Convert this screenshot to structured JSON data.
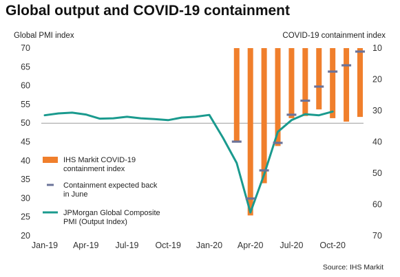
{
  "title": "Global output and COVID-19 containment",
  "source": "Source: IHS Markit",
  "colors": {
    "bars": "#f07f2c",
    "line": "#1a9a8e",
    "dash": "#6b7399",
    "baseline": "#9a9a9a"
  },
  "chart_data": {
    "type": "bar+line",
    "left_axis": {
      "label": "Global PMI index",
      "range": [
        20,
        70
      ],
      "ticks": [
        20,
        25,
        30,
        35,
        40,
        45,
        50,
        55,
        60,
        65,
        70
      ]
    },
    "right_axis": {
      "label": "COVID-19 containment index",
      "range": [
        70,
        10
      ],
      "inverted": true,
      "ticks": [
        10,
        20,
        30,
        40,
        50,
        60,
        70
      ]
    },
    "x_tick_labels": [
      "Jan-19",
      "Apr-19",
      "Jul-19",
      "Oct-19",
      "Jan-20",
      "Apr-20",
      "Jul-20",
      "Oct-20"
    ],
    "months": [
      "Jan-19",
      "Feb-19",
      "Mar-19",
      "Apr-19",
      "May-19",
      "Jun-19",
      "Jul-19",
      "Aug-19",
      "Sep-19",
      "Oct-19",
      "Nov-19",
      "Dec-19",
      "Jan-20",
      "Feb-20",
      "Mar-20",
      "Apr-20",
      "May-20",
      "Jun-20",
      "Jul-20",
      "Aug-20",
      "Sep-20",
      "Oct-20",
      "Nov-20",
      "Dec-20"
    ],
    "legend": [
      {
        "key": "bars",
        "label": "IHS Markit COVID-19 containment index"
      },
      {
        "key": "dash",
        "label": "Containment expected back in June"
      },
      {
        "key": "line",
        "label": "JPMorgan Global Composite PMI (Output Index)"
      }
    ],
    "series": [
      {
        "name": "IHS Markit COVID-19 containment index",
        "axis": "right",
        "type": "bar",
        "x": [
          "Mar-20",
          "Apr-20",
          "May-20",
          "Jun-20",
          "Jul-20",
          "Aug-20",
          "Sep-20",
          "Oct-20",
          "Nov-20",
          "Dec-20"
        ],
        "values": [
          39.9,
          63.5,
          53.2,
          41.3,
          32.4,
          31.7,
          29.6,
          32.4,
          33.5,
          32.0
        ]
      },
      {
        "name": "Containment expected back in June",
        "axis": "right",
        "type": "marker",
        "x": [
          "Mar-20",
          "Apr-20",
          "May-20",
          "Jun-20",
          "Jul-20",
          "Aug-20",
          "Sep-20",
          "Oct-20",
          "Nov-20",
          "Dec-20"
        ],
        "values": [
          39.9,
          58.1,
          49.1,
          40.3,
          31.3,
          26.8,
          22.3,
          17.5,
          15.5,
          11.1
        ]
      },
      {
        "name": "JPMorgan Global Composite PMI (Output Index)",
        "axis": "left",
        "type": "line",
        "x": [
          "Jan-19",
          "Feb-19",
          "Mar-19",
          "Apr-19",
          "May-19",
          "Jun-19",
          "Jul-19",
          "Aug-19",
          "Sep-19",
          "Oct-19",
          "Nov-19",
          "Dec-19",
          "Jan-20",
          "Feb-20",
          "Mar-20",
          "Apr-20",
          "May-20",
          "Jun-20",
          "Jul-20",
          "Aug-20",
          "Sep-20",
          "Oct-20"
        ],
        "values": [
          52.1,
          52.6,
          52.8,
          52.3,
          51.2,
          51.3,
          51.7,
          51.3,
          51.1,
          50.8,
          51.5,
          51.7,
          52.2,
          46.1,
          39.4,
          26.2,
          36.3,
          47.7,
          50.8,
          52.4,
          52.1,
          53.1
        ]
      }
    ],
    "reference_line": {
      "axis": "left",
      "value": 50
    }
  }
}
